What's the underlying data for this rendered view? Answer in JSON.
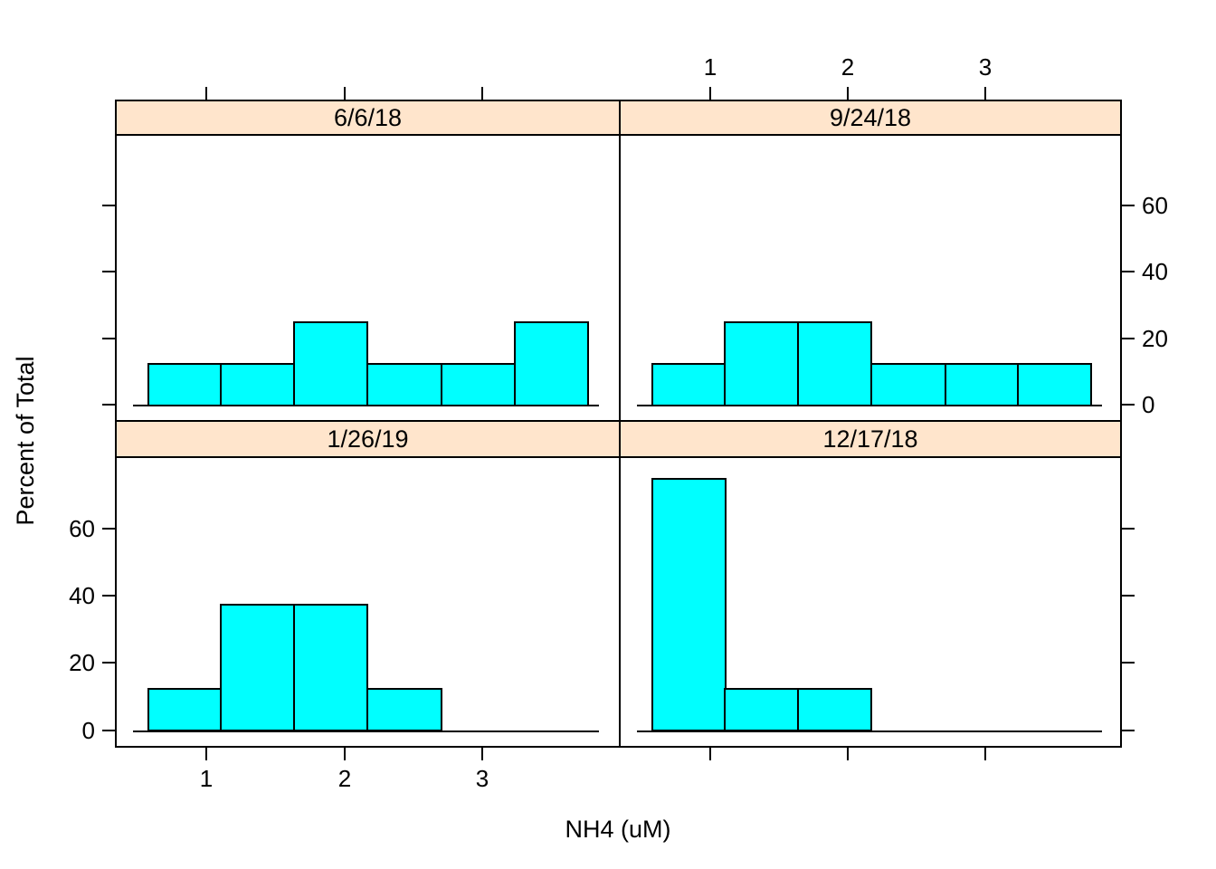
{
  "chart_data": {
    "type": "bar",
    "subtype": "trellis-histogram",
    "title": "",
    "xlabel": "NH4 (uM)",
    "ylabel": "Percent of Total",
    "xlim": [
      0.336,
      3.99
    ],
    "ylim": [
      -5.2,
      81
    ],
    "grid": "off",
    "bin_edges": [
      0.57,
      1.1,
      1.63,
      2.16,
      2.7,
      3.23,
      3.76
    ],
    "panels": [
      {
        "label": "6/6/18",
        "row": 0,
        "col": 0,
        "percents": [
          12.5,
          12.5,
          25.0,
          12.5,
          12.5,
          25.0
        ]
      },
      {
        "label": "9/24/18",
        "row": 0,
        "col": 1,
        "percents": [
          12.5,
          25.0,
          25.0,
          12.5,
          12.5,
          12.5
        ]
      },
      {
        "label": "1/26/19",
        "row": 1,
        "col": 0,
        "percents": [
          12.5,
          37.5,
          37.5,
          12.5,
          0,
          0
        ]
      },
      {
        "label": "12/17/18",
        "row": 1,
        "col": 1,
        "percents": [
          75.0,
          12.5,
          12.5,
          0,
          0,
          0
        ]
      }
    ],
    "axes": {
      "top": {
        "ticks": [
          1,
          2,
          3
        ],
        "labels": [
          "1",
          "2",
          "3"
        ],
        "labeled_col": 1
      },
      "bottom": {
        "ticks": [
          1,
          2,
          3
        ],
        "labels": [
          "1",
          "2",
          "3"
        ],
        "labeled_col": 0
      },
      "left": {
        "ticks": [
          0,
          20,
          40,
          60
        ],
        "labels": [
          "0",
          "20",
          "40",
          "60"
        ],
        "labeled_row": 1
      },
      "right": {
        "ticks": [
          0,
          20,
          40,
          60
        ],
        "labels": [
          "0",
          "20",
          "40",
          "60"
        ],
        "labeled_row": 0
      }
    },
    "colors": {
      "bar_fill": "#00FFFF",
      "bar_border": "#000000",
      "strip_bg": "#FFE5CC",
      "axis": "#000000",
      "background": "#FFFFFF"
    }
  }
}
